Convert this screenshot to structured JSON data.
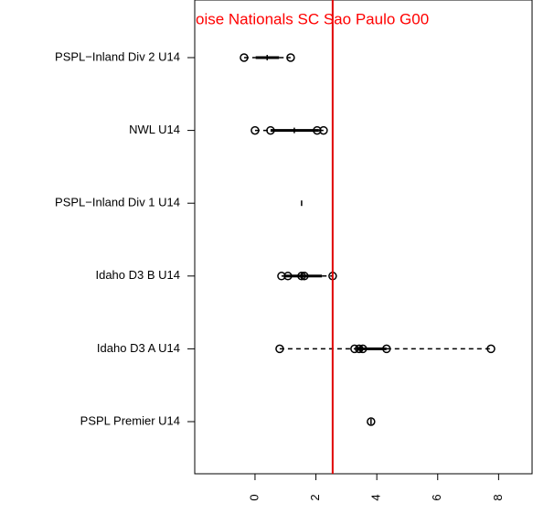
{
  "chart_data": {
    "type": "boxplot",
    "title": "oise Nationals SC Sao Paulo G00",
    "title_color": "#ff0000",
    "categories": [
      "PSPL−Inland Div 2 U14",
      "NWL U14",
      "PSPL−Inland Div 1 U14",
      "Idaho D3 B U14",
      "Idaho D3 A U14",
      "PSPL Premier U14"
    ],
    "boxes": [
      {
        "min": -0.36,
        "q1": 0.02,
        "median": 0.4,
        "q3": 0.79,
        "max": 1.17
      },
      {
        "min": 0.0,
        "q1": 0.51,
        "median": 1.29,
        "q3": 2.1,
        "max": 2.25
      },
      {
        "min": 1.53,
        "q1": 1.53,
        "median": 1.53,
        "q3": 1.53,
        "max": 1.53
      },
      {
        "min": 0.87,
        "q1": 0.96,
        "median": 1.56,
        "q3": 2.2,
        "max": 2.55
      },
      {
        "min": 0.81,
        "q1": 3.33,
        "median": 3.48,
        "q3": 4.32,
        "max": 7.75
      },
      {
        "min": 3.81,
        "q1": 3.81,
        "median": 3.81,
        "q3": 3.81,
        "max": 3.81
      }
    ],
    "points": [
      [
        -0.36,
        1.17
      ],
      [
        0.0,
        0.51,
        2.04,
        2.25
      ],
      [],
      [
        0.87,
        1.08,
        1.53,
        1.62,
        2.55
      ],
      [
        0.81,
        3.27,
        3.42,
        3.54,
        4.32,
        7.75
      ],
      [
        3.81
      ]
    ],
    "ref_line": 2.55,
    "ref_color": "#e00000",
    "xlim": [
      -1.98,
      9.13
    ],
    "xticks": [
      0,
      2,
      4,
      6,
      8
    ]
  }
}
